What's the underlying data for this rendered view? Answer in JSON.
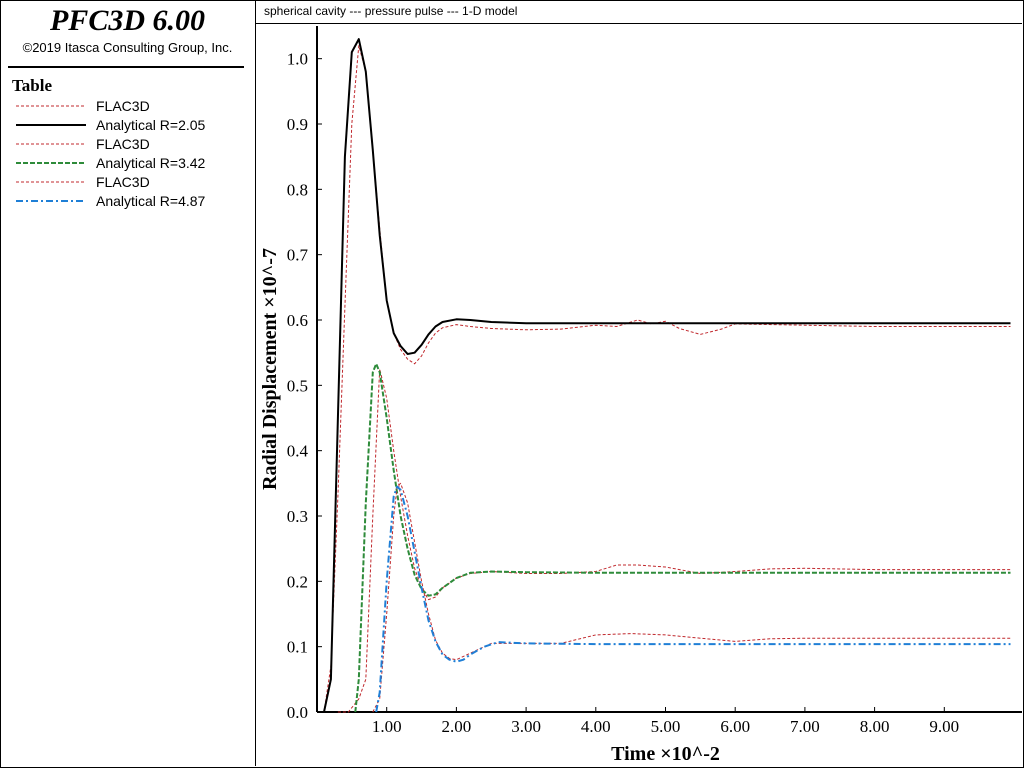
{
  "app": {
    "title": "PFC3D 6.00",
    "copyright": "©2019 Itasca Consulting Group, Inc."
  },
  "legend": {
    "title": "Table",
    "items": [
      {
        "label": "FLAC3D",
        "color": "#c0282d",
        "style": "dashed-thin"
      },
      {
        "label": "Analytical R=2.05",
        "color": "#000000",
        "style": "solid"
      },
      {
        "label": "FLAC3D",
        "color": "#c0282d",
        "style": "dashed-thin"
      },
      {
        "label": "Analytical R=3.42",
        "color": "#2e8b3a",
        "style": "dashed"
      },
      {
        "label": "FLAC3D",
        "color": "#c0282d",
        "style": "dashed-thin"
      },
      {
        "label": "Analytical R=4.87",
        "color": "#1f7fd6",
        "style": "dashdot"
      }
    ]
  },
  "chart_data": {
    "type": "line",
    "title": "spherical cavity --- pressure pulse --- 1-D model",
    "xlabel": "Time ×10^-2",
    "ylabel": "Radial Displacement ×10^-7",
    "xlim": [
      0,
      10
    ],
    "ylim": [
      0,
      1.05
    ],
    "xticks": [
      1,
      2,
      3,
      4,
      5,
      6,
      7,
      8,
      9
    ],
    "xtick_labels": [
      "1.00",
      "2.00",
      "3.00",
      "4.00",
      "5.00",
      "6.00",
      "7.00",
      "8.00",
      "9.00"
    ],
    "yticks": [
      0,
      0.1,
      0.2,
      0.3,
      0.4,
      0.5,
      0.6,
      0.7,
      0.8,
      0.9,
      1.0
    ],
    "ytick_labels": [
      "0.0",
      "0.1",
      "0.2",
      "0.3",
      "0.4",
      "0.5",
      "0.6",
      "0.7",
      "0.8",
      "0.9",
      "1.0"
    ],
    "grid": false,
    "series": [
      {
        "name": "FLAC3D",
        "color": "#c0282d",
        "style": "dashed-thin",
        "x": [
          0.1,
          0.2,
          0.3,
          0.4,
          0.5,
          0.6,
          0.7,
          0.8,
          0.9,
          1.0,
          1.1,
          1.2,
          1.3,
          1.4,
          1.5,
          1.6,
          1.7,
          1.8,
          2.0,
          2.2,
          2.5,
          3.0,
          3.5,
          4.0,
          4.3,
          4.6,
          4.8,
          5.0,
          5.2,
          5.5,
          5.8,
          6.0,
          7.0,
          8.0,
          9.0,
          9.95
        ],
        "y": [
          0.0,
          0.07,
          0.33,
          0.62,
          0.9,
          1.02,
          0.98,
          0.86,
          0.74,
          0.63,
          0.58,
          0.555,
          0.54,
          0.533,
          0.545,
          0.565,
          0.58,
          0.588,
          0.593,
          0.59,
          0.587,
          0.585,
          0.586,
          0.592,
          0.59,
          0.6,
          0.594,
          0.598,
          0.587,
          0.578,
          0.586,
          0.594,
          0.592,
          0.59,
          0.59,
          0.59
        ]
      },
      {
        "name": "Analytical R=2.05",
        "color": "#000000",
        "style": "solid",
        "x": [
          0.1,
          0.2,
          0.3,
          0.4,
          0.5,
          0.6,
          0.7,
          0.8,
          0.9,
          1.0,
          1.1,
          1.2,
          1.3,
          1.4,
          1.5,
          1.6,
          1.7,
          1.8,
          2.0,
          2.2,
          2.5,
          3.0,
          3.5,
          4.0,
          5.0,
          6.0,
          7.0,
          8.0,
          9.0,
          9.95
        ],
        "y": [
          0.0,
          0.05,
          0.45,
          0.85,
          1.01,
          1.03,
          0.98,
          0.86,
          0.73,
          0.63,
          0.58,
          0.56,
          0.548,
          0.55,
          0.562,
          0.578,
          0.59,
          0.597,
          0.601,
          0.6,
          0.597,
          0.595,
          0.595,
          0.595,
          0.595,
          0.595,
          0.595,
          0.595,
          0.595,
          0.595
        ]
      },
      {
        "name": "FLAC3D",
        "color": "#c0282d",
        "style": "dashed-thin",
        "x": [
          0.3,
          0.45,
          0.6,
          0.7,
          0.8,
          0.9,
          1.0,
          1.1,
          1.2,
          1.3,
          1.4,
          1.5,
          1.6,
          1.7,
          1.8,
          2.0,
          2.2,
          2.5,
          3.0,
          3.5,
          4.0,
          4.3,
          4.6,
          5.0,
          5.5,
          6.0,
          6.5,
          7.0,
          8.0,
          9.0,
          9.95
        ],
        "y": [
          0.0,
          0.0,
          0.02,
          0.05,
          0.3,
          0.525,
          0.48,
          0.4,
          0.33,
          0.27,
          0.22,
          0.19,
          0.172,
          0.176,
          0.19,
          0.205,
          0.212,
          0.215,
          0.212,
          0.212,
          0.215,
          0.225,
          0.225,
          0.222,
          0.212,
          0.215,
          0.219,
          0.22,
          0.218,
          0.218,
          0.218
        ]
      },
      {
        "name": "Analytical R=3.42",
        "color": "#2e8b3a",
        "style": "dashed",
        "x": [
          0.55,
          0.6,
          0.7,
          0.8,
          0.85,
          0.9,
          1.0,
          1.1,
          1.2,
          1.3,
          1.4,
          1.5,
          1.6,
          1.7,
          1.8,
          2.0,
          2.2,
          2.5,
          3.0,
          4.0,
          5.0,
          6.0,
          7.0,
          8.0,
          9.0,
          9.95
        ],
        "y": [
          0.0,
          0.05,
          0.32,
          0.52,
          0.533,
          0.52,
          0.45,
          0.37,
          0.3,
          0.25,
          0.21,
          0.188,
          0.178,
          0.18,
          0.19,
          0.205,
          0.213,
          0.215,
          0.214,
          0.213,
          0.213,
          0.213,
          0.213,
          0.213,
          0.213,
          0.213
        ]
      },
      {
        "name": "FLAC3D",
        "color": "#c0282d",
        "style": "dashed-thin",
        "x": [
          0.8,
          0.9,
          1.0,
          1.1,
          1.15,
          1.2,
          1.3,
          1.4,
          1.5,
          1.6,
          1.7,
          1.8,
          1.9,
          2.0,
          2.2,
          2.5,
          3.0,
          3.5,
          4.0,
          4.5,
          5.0,
          5.5,
          6.0,
          6.5,
          7.0,
          8.0,
          9.0,
          9.95
        ],
        "y": [
          0.0,
          0.02,
          0.15,
          0.3,
          0.345,
          0.35,
          0.32,
          0.26,
          0.2,
          0.15,
          0.11,
          0.09,
          0.082,
          0.08,
          0.09,
          0.105,
          0.105,
          0.105,
          0.118,
          0.12,
          0.118,
          0.113,
          0.108,
          0.112,
          0.113,
          0.113,
          0.113,
          0.113
        ]
      },
      {
        "name": "Analytical R=4.87",
        "color": "#1f7fd6",
        "style": "dashdot",
        "x": [
          0.85,
          0.9,
          1.0,
          1.1,
          1.15,
          1.2,
          1.3,
          1.4,
          1.5,
          1.6,
          1.7,
          1.8,
          1.9,
          2.0,
          2.1,
          2.2,
          2.4,
          2.6,
          3.0,
          4.0,
          5.0,
          6.0,
          7.0,
          8.0,
          9.0,
          9.95
        ],
        "y": [
          0.0,
          0.03,
          0.2,
          0.33,
          0.345,
          0.34,
          0.3,
          0.245,
          0.19,
          0.14,
          0.108,
          0.088,
          0.08,
          0.077,
          0.08,
          0.088,
          0.1,
          0.107,
          0.105,
          0.104,
          0.104,
          0.104,
          0.104,
          0.104,
          0.104,
          0.104
        ]
      }
    ]
  }
}
